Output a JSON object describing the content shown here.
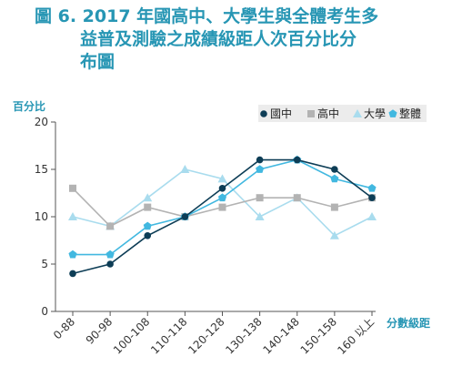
{
  "title": {
    "line1": "圖 6. 2017 年國高中、大學生與全體考生多",
    "line2": "益普及測驗之成績級距人次百分比分",
    "line3": "布圖"
  },
  "chart_data": {
    "type": "line",
    "categories": [
      "0-88",
      "90-98",
      "100-108",
      "110-118",
      "120-128",
      "130-138",
      "140-148",
      "150-158",
      "160 以上"
    ],
    "ylabel": "百分比",
    "xlabel": "分數級距",
    "ylim": [
      0,
      20
    ],
    "yticks": [
      0,
      5,
      10,
      15,
      20
    ],
    "grid": false,
    "legend_position": "top-right",
    "series": [
      {
        "name": "國中",
        "color": "#0d3d56",
        "marker": "circle",
        "values": [
          4,
          5,
          8,
          10,
          13,
          16,
          16,
          15,
          12
        ]
      },
      {
        "name": "高中",
        "color": "#b3b3b3",
        "marker": "square",
        "values": [
          13,
          9,
          11,
          10,
          11,
          12,
          12,
          11,
          12
        ]
      },
      {
        "name": "大學",
        "color": "#a9dcee",
        "marker": "triangle",
        "values": [
          10,
          9,
          12,
          15,
          14,
          10,
          12,
          8,
          10
        ]
      },
      {
        "name": "整體",
        "color": "#42b8e0",
        "marker": "pentagon",
        "values": [
          6,
          6,
          9,
          10,
          12,
          15,
          16,
          14,
          13
        ]
      }
    ]
  }
}
